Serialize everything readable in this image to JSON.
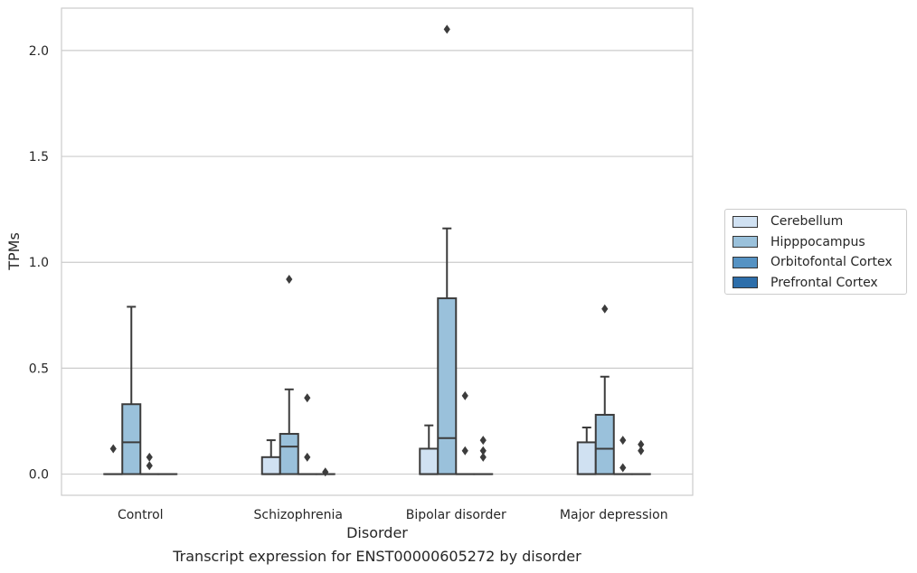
{
  "chart_data": {
    "type": "box",
    "xlabel": "Disorder",
    "ylabel": "TPMs",
    "caption": "Transcript expression for ENST00000605272 by disorder",
    "categories": [
      "Control",
      "Schizophrenia",
      "Bipolar disorder",
      "Major depression"
    ],
    "ylim": [
      -0.1,
      2.2
    ],
    "yticks": [
      0.0,
      0.5,
      1.0,
      1.5,
      2.0
    ],
    "ytick_labels": [
      "0.0",
      "0.5",
      "1.0",
      "1.5",
      "2.0"
    ],
    "grid": "horizontal",
    "legend_position": "right",
    "series": [
      {
        "name": "Cerebellum",
        "color": "#d0e1f2",
        "boxes": [
          {
            "q1": 0,
            "median": 0,
            "q3": 0,
            "whisker_low": 0,
            "whisker_high": 0,
            "outliers": [
              0.12
            ]
          },
          {
            "q1": 0,
            "median": 0,
            "q3": 0.08,
            "whisker_low": 0,
            "whisker_high": 0.16,
            "outliers": []
          },
          {
            "q1": 0,
            "median": 0,
            "q3": 0.12,
            "whisker_low": 0,
            "whisker_high": 0.23,
            "outliers": []
          },
          {
            "q1": 0,
            "median": 0,
            "q3": 0.15,
            "whisker_low": 0,
            "whisker_high": 0.22,
            "outliers": []
          }
        ]
      },
      {
        "name": "Hipppocampus",
        "color": "#9ac1db",
        "boxes": [
          {
            "q1": 0,
            "median": 0.15,
            "q3": 0.33,
            "whisker_low": 0,
            "whisker_high": 0.79,
            "outliers": []
          },
          {
            "q1": 0,
            "median": 0.13,
            "q3": 0.19,
            "whisker_low": 0,
            "whisker_high": 0.4,
            "outliers": [
              0.92
            ]
          },
          {
            "q1": 0,
            "median": 0.17,
            "q3": 0.83,
            "whisker_low": 0,
            "whisker_high": 1.16,
            "outliers": [
              2.1
            ]
          },
          {
            "q1": 0,
            "median": 0.12,
            "q3": 0.28,
            "whisker_low": 0,
            "whisker_high": 0.46,
            "outliers": [
              0.78
            ]
          }
        ]
      },
      {
        "name": "Orbitofontal Cortex",
        "color": "#5592c3",
        "boxes": [
          {
            "q1": 0,
            "median": 0,
            "q3": 0,
            "whisker_low": 0,
            "whisker_high": 0,
            "outliers": [
              0.08,
              0.04
            ]
          },
          {
            "q1": 0,
            "median": 0,
            "q3": 0,
            "whisker_low": 0,
            "whisker_high": 0,
            "outliers": [
              0.36,
              0.08
            ]
          },
          {
            "q1": 0,
            "median": 0,
            "q3": 0,
            "whisker_low": 0,
            "whisker_high": 0,
            "outliers": [
              0.37,
              0.11
            ]
          },
          {
            "q1": 0,
            "median": 0,
            "q3": 0,
            "whisker_low": 0,
            "whisker_high": 0,
            "outliers": [
              0.16,
              0.03
            ]
          }
        ]
      },
      {
        "name": "Prefrontal Cortex",
        "color": "#2d6eaa",
        "boxes": [
          {
            "q1": 0,
            "median": 0,
            "q3": 0,
            "whisker_low": 0,
            "whisker_high": 0,
            "outliers": []
          },
          {
            "q1": 0,
            "median": 0,
            "q3": 0,
            "whisker_low": 0,
            "whisker_high": 0,
            "outliers": [
              0.01
            ]
          },
          {
            "q1": 0,
            "median": 0,
            "q3": 0,
            "whisker_low": 0,
            "whisker_high": 0,
            "outliers": [
              0.16,
              0.11,
              0.08
            ]
          },
          {
            "q1": 0,
            "median": 0,
            "q3": 0,
            "whisker_low": 0,
            "whisker_high": 0,
            "outliers": [
              0.14,
              0.11
            ]
          }
        ]
      }
    ]
  }
}
